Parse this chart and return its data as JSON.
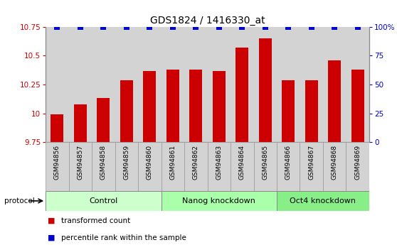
{
  "title": "GDS1824 / 1416330_at",
  "samples": [
    "GSM94856",
    "GSM94857",
    "GSM94858",
    "GSM94859",
    "GSM94860",
    "GSM94861",
    "GSM94862",
    "GSM94863",
    "GSM94864",
    "GSM94865",
    "GSM94866",
    "GSM94867",
    "GSM94868",
    "GSM94869"
  ],
  "bar_values": [
    9.99,
    10.08,
    10.13,
    10.29,
    10.37,
    10.38,
    10.38,
    10.37,
    10.57,
    10.65,
    10.29,
    10.29,
    10.46,
    10.38
  ],
  "percentile_values": [
    100,
    100,
    100,
    100,
    100,
    100,
    100,
    100,
    100,
    100,
    100,
    100,
    100,
    100
  ],
  "bar_color": "#cc0000",
  "percentile_color": "#0000cc",
  "ylim_left": [
    9.75,
    10.75
  ],
  "ylim_right": [
    0,
    100
  ],
  "yticks_left": [
    9.75,
    10.0,
    10.25,
    10.5,
    10.75
  ],
  "ytick_labels_left": [
    "9.75",
    "10",
    "10.25",
    "10.5",
    "10.75"
  ],
  "yticks_right": [
    0,
    25,
    50,
    75,
    100
  ],
  "ytick_labels_right": [
    "0",
    "25",
    "50",
    "75",
    "100%"
  ],
  "groups": [
    {
      "label": "Control",
      "start": 0,
      "end": 5,
      "color": "#ccffcc"
    },
    {
      "label": "Nanog knockdown",
      "start": 5,
      "end": 10,
      "color": "#aaffaa"
    },
    {
      "label": "Oct4 knockdown",
      "start": 10,
      "end": 14,
      "color": "#88ee88"
    }
  ],
  "protocol_label": "protocol",
  "legend_items": [
    {
      "label": "transformed count",
      "color": "#cc0000"
    },
    {
      "label": "percentile rank within the sample",
      "color": "#0000cc"
    }
  ],
  "bar_width": 0.55,
  "dot_size": 30,
  "background_gray": "#d3d3d3",
  "title_fontsize": 10,
  "tick_fontsize": 7.5,
  "sample_fontsize": 6.5,
  "group_fontsize": 8,
  "legend_fontsize": 7.5
}
